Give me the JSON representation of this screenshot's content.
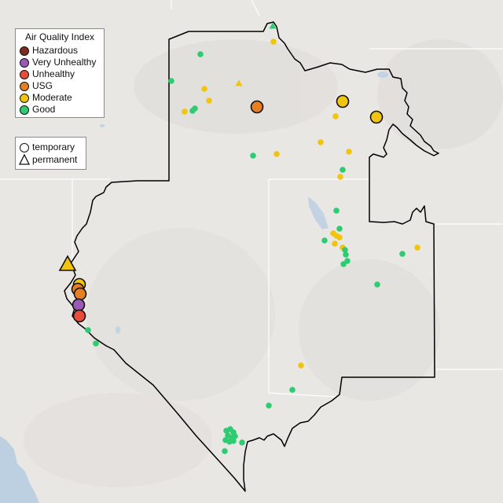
{
  "legend": {
    "title": "Air Quality Index",
    "categories": [
      {
        "label": "Hazardous",
        "color": "#7e2b22"
      },
      {
        "label": "Very Unhealthy",
        "color": "#9b59b6"
      },
      {
        "label": "Unhealthy",
        "color": "#e74c3c"
      },
      {
        "label": "USG",
        "color": "#e67e22"
      },
      {
        "label": "Moderate",
        "color": "#f1c40f"
      },
      {
        "label": "Good",
        "color": "#2ecc71"
      }
    ],
    "site_types": [
      {
        "label": "temporary",
        "shape": "circle"
      },
      {
        "label": "permanent",
        "shape": "triangle"
      }
    ]
  },
  "map": {
    "land_color": "#e9e7e4",
    "ocean_color": "#bcd0e2",
    "boundary_color": "#000000",
    "gridline_color": "#ffffff"
  }
}
